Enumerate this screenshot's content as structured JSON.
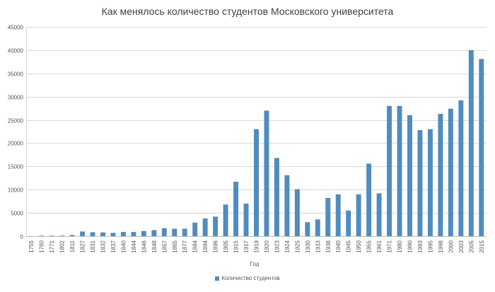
{
  "chart_data": {
    "type": "bar",
    "title": "Как менялось количество студентов Московского университета",
    "xlabel": "Год",
    "ylabel": "",
    "ylim": [
      0,
      45000
    ],
    "yticks": [
      0,
      5000,
      10000,
      15000,
      20000,
      25000,
      30000,
      35000,
      40000,
      45000
    ],
    "grid": true,
    "legend_position": "bottom",
    "categories": [
      "1755",
      "1760",
      "1771",
      "1802",
      "1811",
      "1827",
      "1831",
      "1832",
      "1837",
      "1840",
      "1844",
      "1846",
      "1848",
      "1857",
      "1865",
      "1877",
      "1884",
      "1894",
      "1896",
      "1905",
      "1915",
      "1917",
      "1919",
      "1920",
      "1923",
      "1924",
      "1925",
      "1930",
      "1933",
      "1938",
      "1940",
      "1945",
      "1950",
      "1955",
      "1961",
      "1971",
      "1980",
      "1990",
      "1993",
      "1995",
      "1998",
      "2000",
      "2003",
      "2005",
      "2015"
    ],
    "series": [
      {
        "name": "Количество студентов",
        "color": "#4f8cbf",
        "values": [
          30,
          100,
          100,
          100,
          250,
          1000,
          850,
          800,
          700,
          900,
          900,
          1100,
          1300,
          1700,
          1600,
          1600,
          2900,
          3800,
          4200,
          6800,
          11700,
          7000,
          23000,
          27000,
          16800,
          13100,
          10100,
          3000,
          3600,
          8200,
          9000,
          5500,
          9000,
          15600,
          9200,
          28000,
          28000,
          26000,
          22800,
          23000,
          26300,
          27400,
          29200,
          40000,
          38100
        ]
      }
    ]
  }
}
